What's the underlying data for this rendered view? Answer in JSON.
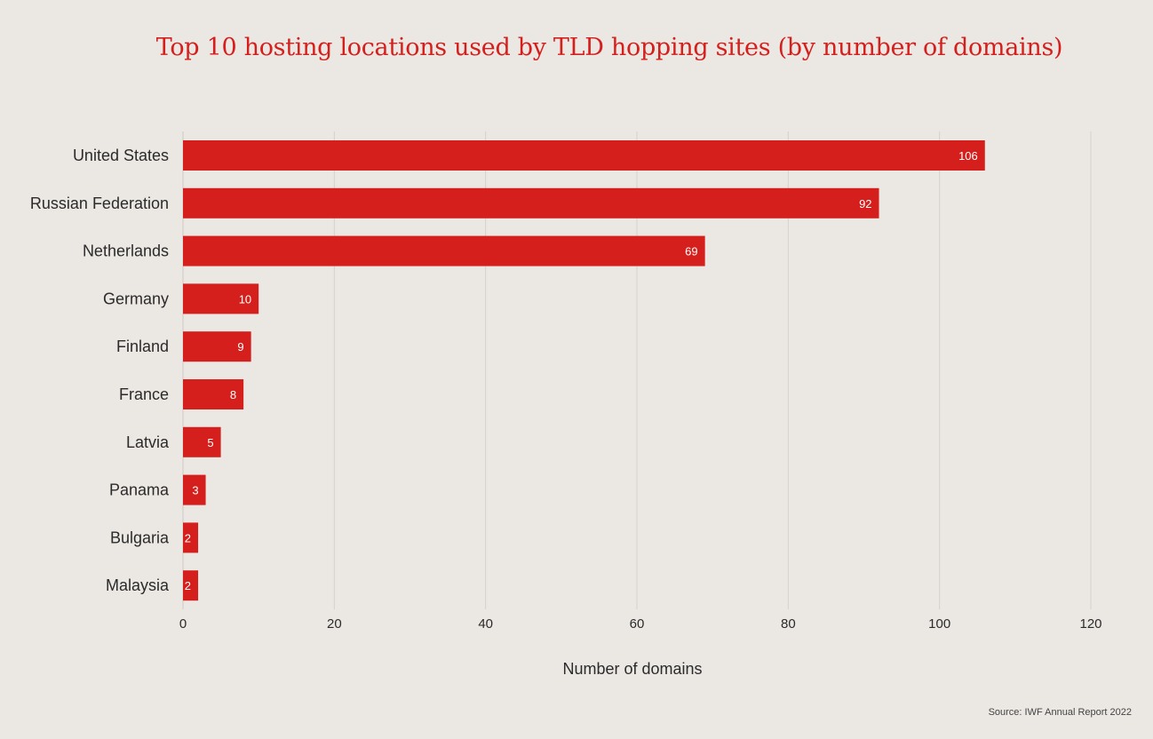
{
  "chart_data": {
    "type": "bar",
    "orientation": "horizontal",
    "title": "Top 10 hosting locations used by TLD hopping sites (by number of domains)",
    "xlabel": "Number of domains",
    "ylabel": "",
    "categories": [
      "United States",
      "Russian Federation",
      "Netherlands",
      "Germany",
      "Finland",
      "France",
      "Latvia",
      "Panama",
      "Bulgaria",
      "Malaysia"
    ],
    "values": [
      106,
      92,
      69,
      10,
      9,
      8,
      5,
      3,
      2,
      2
    ],
    "xlim": [
      0,
      120
    ],
    "xticks": [
      0,
      20,
      40,
      60,
      80,
      100,
      120
    ],
    "grid": true,
    "data_labels": true,
    "bar_color": "#d41f1c"
  },
  "source": "Source: IWF Annual Report 2022"
}
